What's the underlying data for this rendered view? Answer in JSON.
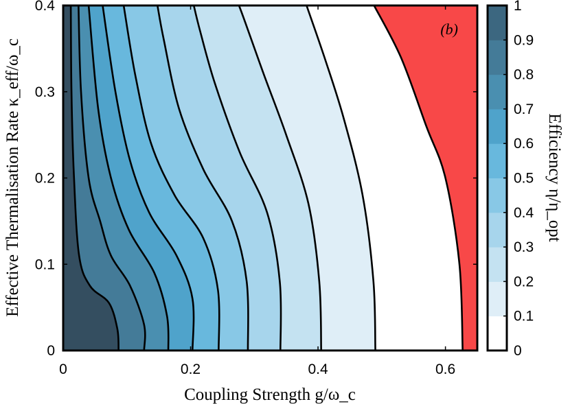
{
  "chart_data": {
    "type": "contour",
    "panel_label": "(b)",
    "xlabel": "Coupling Strength g/ω_c",
    "ylabel": "Effective Thermalisation Rate κ_eff/ω_c",
    "colorbar_label": "Efficiency η/η_opt",
    "xlim": [
      0,
      0.65
    ],
    "ylim": [
      0,
      0.4
    ],
    "x_ticks": [
      0,
      0.2,
      0.4,
      0.6
    ],
    "x_tick_labels": [
      "0",
      "0.2",
      "0.4",
      "0.6"
    ],
    "y_ticks": [
      0,
      0.1,
      0.2,
      0.3,
      0.4
    ],
    "y_tick_labels": [
      "0",
      "0.1",
      "0.2",
      "0.3",
      "0.4"
    ],
    "colorbar": {
      "range": [
        0,
        1
      ],
      "ticks": [
        0,
        0.1,
        0.2,
        0.3,
        0.4,
        0.5,
        0.6,
        0.7,
        0.8,
        0.9,
        1
      ],
      "tick_labels": [
        "0",
        "0.1",
        "0.2",
        "0.3",
        "0.4",
        "0.5",
        "0.6",
        "0.7",
        "0.8",
        "0.9",
        "1"
      ],
      "band_colors": [
        "#ffffff",
        "#dfeef7",
        "#c4e2f1",
        "#a7d5ec",
        "#88c8e6",
        "#68b8dd",
        "#4fa3cb",
        "#4a8fb0",
        "#447b98",
        "#3c6780",
        "#344e60"
      ]
    },
    "negative_region_color": "#f84848",
    "contours": [
      {
        "level": 0.9,
        "points": [
          [
            0.087,
            0
          ],
          [
            0.085,
            0.025
          ],
          [
            0.072,
            0.055
          ],
          [
            0.042,
            0.075
          ],
          [
            0.025,
            0.11
          ],
          [
            0.017,
            0.2
          ],
          [
            0.013,
            0.3
          ],
          [
            0.012,
            0.4
          ]
        ]
      },
      {
        "level": 0.8,
        "points": [
          [
            0.127,
            0
          ],
          [
            0.127,
            0.03
          ],
          [
            0.105,
            0.075
          ],
          [
            0.075,
            0.11
          ],
          [
            0.058,
            0.15
          ],
          [
            0.04,
            0.2
          ],
          [
            0.028,
            0.3
          ],
          [
            0.024,
            0.4
          ]
        ]
      },
      {
        "level": 0.7,
        "points": [
          [
            0.165,
            0
          ],
          [
            0.163,
            0.04
          ],
          [
            0.143,
            0.09
          ],
          [
            0.103,
            0.14
          ],
          [
            0.075,
            0.2
          ],
          [
            0.055,
            0.28
          ],
          [
            0.04,
            0.4
          ]
        ]
      },
      {
        "level": 0.6,
        "points": [
          [
            0.203,
            0
          ],
          [
            0.203,
            0.06
          ],
          [
            0.178,
            0.11
          ],
          [
            0.135,
            0.16
          ],
          [
            0.105,
            0.22
          ],
          [
            0.082,
            0.3
          ],
          [
            0.062,
            0.4
          ]
        ]
      },
      {
        "level": 0.5,
        "points": [
          [
            0.244,
            0
          ],
          [
            0.243,
            0.07
          ],
          [
            0.22,
            0.13
          ],
          [
            0.175,
            0.18
          ],
          [
            0.138,
            0.24
          ],
          [
            0.113,
            0.32
          ],
          [
            0.095,
            0.4
          ]
        ]
      },
      {
        "level": 0.4,
        "points": [
          [
            0.29,
            0
          ],
          [
            0.288,
            0.08
          ],
          [
            0.265,
            0.15
          ],
          [
            0.22,
            0.21
          ],
          [
            0.182,
            0.28
          ],
          [
            0.158,
            0.36
          ],
          [
            0.148,
            0.4
          ]
        ]
      },
      {
        "level": 0.3,
        "points": [
          [
            0.341,
            0
          ],
          [
            0.34,
            0.08
          ],
          [
            0.32,
            0.16
          ],
          [
            0.277,
            0.23
          ],
          [
            0.238,
            0.31
          ],
          [
            0.215,
            0.37
          ],
          [
            0.205,
            0.4
          ]
        ]
      },
      {
        "level": 0.2,
        "points": [
          [
            0.405,
            0
          ],
          [
            0.402,
            0.08
          ],
          [
            0.385,
            0.17
          ],
          [
            0.35,
            0.25
          ],
          [
            0.315,
            0.32
          ],
          [
            0.286,
            0.38
          ],
          [
            0.276,
            0.4
          ]
        ]
      },
      {
        "level": 0.1,
        "points": [
          [
            0.49,
            0
          ],
          [
            0.487,
            0.08
          ],
          [
            0.47,
            0.18
          ],
          [
            0.44,
            0.27
          ],
          [
            0.41,
            0.34
          ],
          [
            0.382,
            0.4
          ]
        ]
      },
      {
        "level": 0,
        "points": [
          [
            0.627,
            0
          ],
          [
            0.622,
            0.1
          ],
          [
            0.6,
            0.2
          ],
          [
            0.57,
            0.26
          ],
          [
            0.53,
            0.34
          ],
          [
            0.488,
            0.4
          ]
        ]
      }
    ]
  }
}
